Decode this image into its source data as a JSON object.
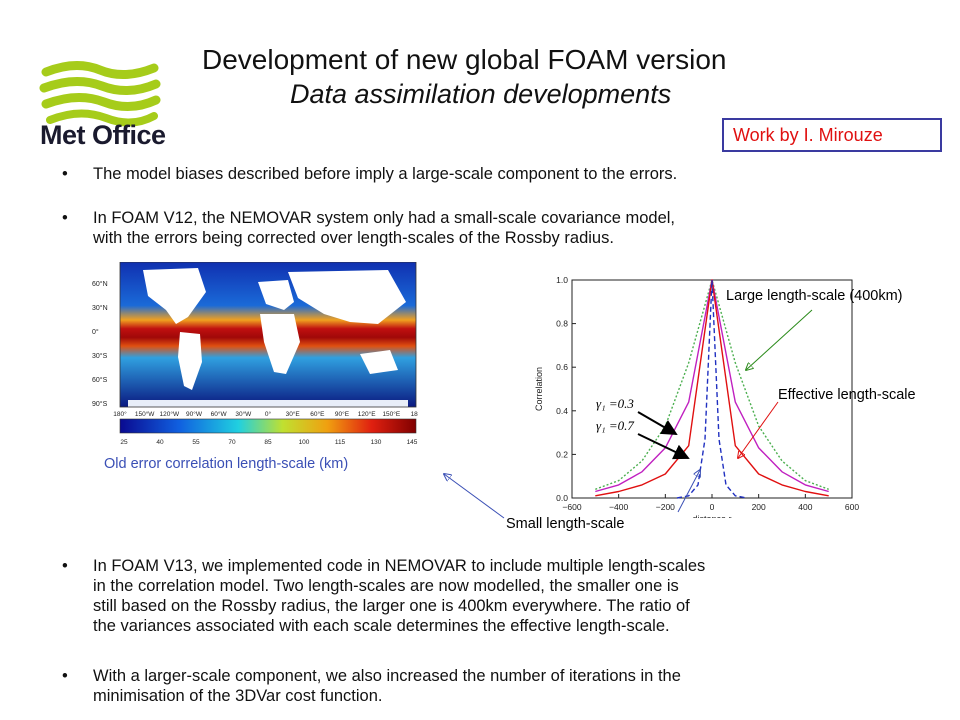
{
  "logo": {
    "text": "Met Office",
    "brand_color": "#a6cc1a",
    "text_color": "#1a1a2e"
  },
  "header": {
    "title": "Development  of new global FOAM version",
    "subtitle": "Data assimilation developments",
    "credit": "Work by I. Mirouze"
  },
  "bullets": [
    "The model biases described before imply a large-scale component to the errors.",
    "In FOAM V12, the NEMOVAR system only had a small-scale covariance model,",
    "with the errors being corrected over length-scales of the Rossby radius.",
    "In FOAM V13, we implemented code in NEMOVAR to include multiple length-scales",
    "in the correlation model. Two length-scales are now modelled, the smaller one is",
    "still based on the Rossby radius, the larger one is 400km everywhere. The ratio of",
    "the variances associated with each scale determines the effective length-scale.",
    "With a larger-scale component, we also increased the number of iterations in the",
    "minimisation of the 3DVar cost function."
  ],
  "bullet_glyph": "•",
  "map": {
    "caption": "Old error correlation length-scale (km)",
    "lat_ticks": [
      "60°N",
      "30°N",
      "0°",
      "30°S",
      "60°S",
      "90°S"
    ],
    "lon_ticks": [
      "180°",
      "150°W",
      "120°W",
      "90°W",
      "60°W",
      "30°W",
      "0°",
      "30°E",
      "60°E",
      "90°E",
      "120°E",
      "150°E",
      "180"
    ],
    "colorbar_ticks": [
      "25",
      "40",
      "55",
      "70",
      "85",
      "100",
      "115",
      "130",
      "145"
    ]
  },
  "annotations": {
    "large": "Large length-scale (400km)",
    "effective": "Effective length-scale",
    "small": "Small length-scale",
    "gamma1": "γ₁ =0.3",
    "gamma2": "γ₁ =0.7",
    "large_color": "#2a8a1a",
    "effective_color": "#e01010",
    "small_color": "#3a4fb5"
  },
  "chart_data": {
    "type": "line",
    "xlabel": "distance r",
    "ylabel": "Correlation",
    "xlim": [
      -600,
      600
    ],
    "ylim": [
      0.0,
      1.0
    ],
    "x_ticks": [
      -600,
      -400,
      -200,
      0,
      200,
      400,
      600
    ],
    "y_ticks": [
      0.0,
      0.2,
      0.4,
      0.6,
      0.8,
      1.0
    ],
    "series": [
      {
        "name": "Large length-scale (400km)",
        "color": "#4caf50",
        "dash": "dotted",
        "x": [
          -500,
          -400,
          -300,
          -200,
          -100,
          0,
          100,
          200,
          300,
          400,
          500
        ],
        "y": [
          0.04,
          0.08,
          0.17,
          0.33,
          0.62,
          1.0,
          0.62,
          0.33,
          0.17,
          0.08,
          0.04
        ]
      },
      {
        "name": "",
        "color": "#c020c0",
        "dash": "solid",
        "x": [
          -500,
          -400,
          -300,
          -200,
          -100,
          0,
          100,
          200,
          300,
          400,
          500
        ],
        "y": [
          0.03,
          0.06,
          0.12,
          0.23,
          0.44,
          1.0,
          0.44,
          0.23,
          0.12,
          0.06,
          0.03
        ]
      },
      {
        "name": "",
        "color": "#e01010",
        "dash": "solid",
        "x": [
          -500,
          -400,
          -300,
          -200,
          -100,
          0,
          100,
          200,
          300,
          400,
          500
        ],
        "y": [
          0.01,
          0.03,
          0.06,
          0.11,
          0.24,
          1.0,
          0.24,
          0.11,
          0.06,
          0.03,
          0.01
        ]
      },
      {
        "name": "Small length-scale",
        "color": "#2030c0",
        "dash": "dashed",
        "x": [
          -150,
          -100,
          -60,
          -30,
          0,
          30,
          60,
          100,
          150
        ],
        "y": [
          0.0,
          0.01,
          0.06,
          0.27,
          1.0,
          0.27,
          0.06,
          0.01,
          0.0
        ]
      }
    ]
  }
}
